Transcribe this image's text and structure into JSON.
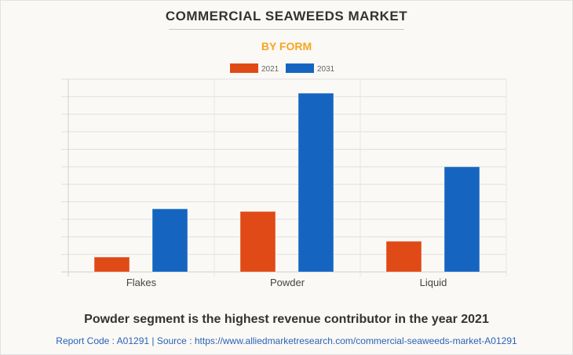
{
  "header": {
    "title": "COMMERCIAL SEAWEEDS MARKET",
    "subtitle": "BY FORM"
  },
  "chart_data": {
    "type": "bar",
    "categories": [
      "Flakes",
      "Powder",
      "Liquid"
    ],
    "series": [
      {
        "name": "2021",
        "color": "#e04a16",
        "values": [
          0.85,
          3.45,
          1.75
        ]
      },
      {
        "name": "2031",
        "color": "#1565c0",
        "values": [
          3.6,
          10.2,
          6.0
        ]
      }
    ],
    "ylim": [
      0,
      11
    ],
    "grid": true,
    "legend": "top-center",
    "y_tick_labels_shown": false
  },
  "footer": {
    "caption": "Powder segment is the highest revenue contributor in the year 2021",
    "source": "Report Code : A01291  |  Source : https://www.alliedmarketresearch.com/commercial-seaweeds-market-A01291"
  }
}
